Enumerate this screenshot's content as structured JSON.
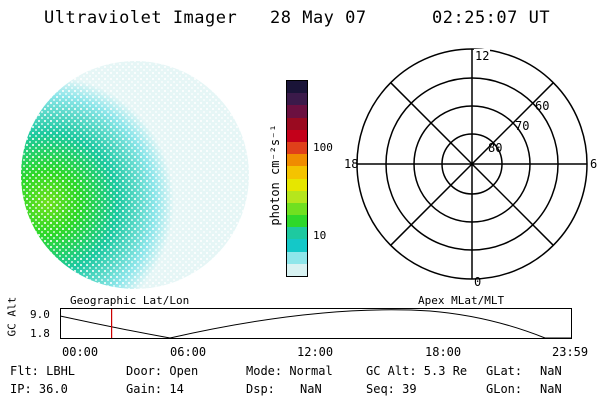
{
  "header": {
    "instrument": "Ultraviolet Imager",
    "date": "28 May 07",
    "time": "02:25:07 UT"
  },
  "colorbar": {
    "label": "photon cm⁻²s⁻¹",
    "ticks": [
      "100",
      "10"
    ],
    "colors": [
      "#1a1438",
      "#3b1a4a",
      "#6b1040",
      "#9a0a20",
      "#c4001a",
      "#e0401a",
      "#f08c00",
      "#f4c300",
      "#e6e600",
      "#b5e61d",
      "#70e020",
      "#2ed82a",
      "#1ec9a0",
      "#14c8c8",
      "#8ee6ea",
      "#d8f2f2"
    ]
  },
  "polar": {
    "labels": {
      "top": "12",
      "bottom": "0",
      "left": "18",
      "right": "6"
    },
    "rings": [
      "60",
      "70",
      "80"
    ]
  },
  "timeline": {
    "left_title": "Geographic Lat/Lon",
    "right_title": "Apex MLat/MLT",
    "ylabel": "GC Alt",
    "ymax": "9.0",
    "ymin": "1.8",
    "xticks": [
      "00:00",
      "06:00",
      "12:00",
      "18:00",
      "23:59"
    ],
    "current_time_fraction": 0.101,
    "line_color": "#cc0000"
  },
  "info": {
    "flt": "Flt: LBHL",
    "ip": "IP: 36.0",
    "door": "Door: Open",
    "gain": "Gain: 14",
    "mode": "Mode: Normal",
    "dsp_label": "Dsp:",
    "dsp_val": "NaN",
    "gcalt": "GC Alt: 5.3 Re",
    "seq": "Seq: 39",
    "glat_label": "GLat:",
    "glat_val": "NaN",
    "glon_label": "GLon:",
    "glon_val": "NaN"
  }
}
